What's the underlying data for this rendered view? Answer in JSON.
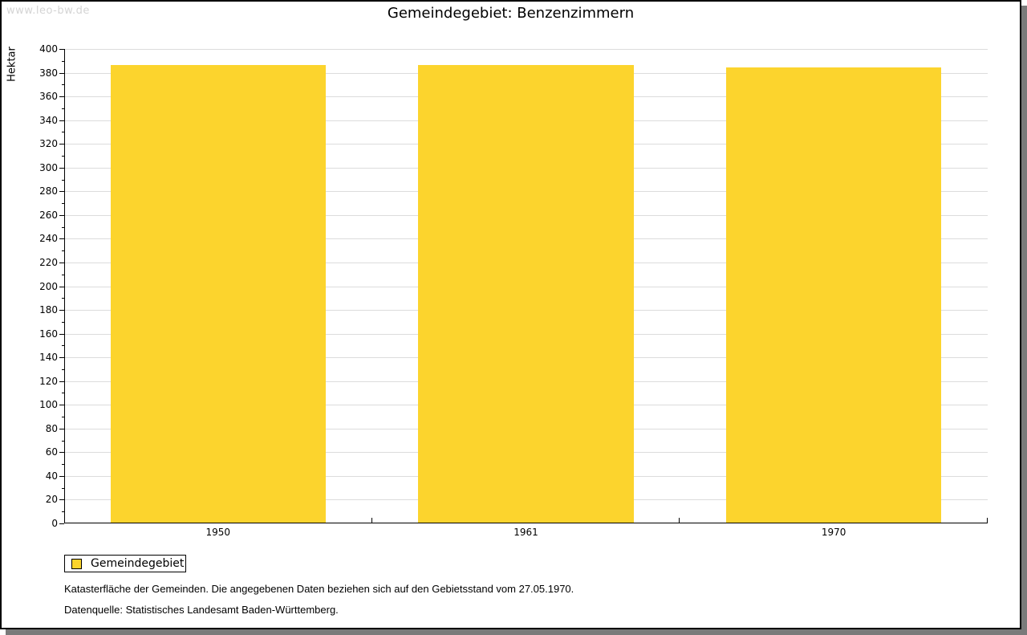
{
  "watermark": "www.leo-bw.de",
  "chart_data": {
    "type": "bar",
    "title": "Gemeindegebiet: Benzenzimmern",
    "ylabel": "Hektar",
    "xlabel": "",
    "categories": [
      "1950",
      "1961",
      "1970"
    ],
    "series": [
      {
        "name": "Gemeindegebiet",
        "values": [
          386,
          386,
          384
        ]
      }
    ],
    "ylim": [
      0,
      400
    ],
    "yticks": [
      0,
      20,
      40,
      60,
      80,
      100,
      120,
      140,
      160,
      180,
      200,
      220,
      240,
      260,
      280,
      300,
      320,
      340,
      360,
      380,
      400
    ],
    "ytick_step": 20,
    "yminor_step": 10,
    "grid": true,
    "legend_position": "bottom-left",
    "bar_color": "#fcd42d"
  },
  "legend": {
    "items": [
      {
        "label": "Gemeindegebiet",
        "color": "#fcd42d"
      }
    ]
  },
  "footer": {
    "line1": "Katasterfläche der Gemeinden. Die angegebenen Daten beziehen sich auf den Gebietsstand vom 27.05.1970.",
    "line2": "Datenquelle: Statistisches Landesamt Baden-Württemberg."
  },
  "colors": {
    "bar": "#fcd42d",
    "grid": "#dcdcdc",
    "axis": "#000000",
    "watermark": "#d4d4d4",
    "shadow": "#7a7a7a"
  }
}
